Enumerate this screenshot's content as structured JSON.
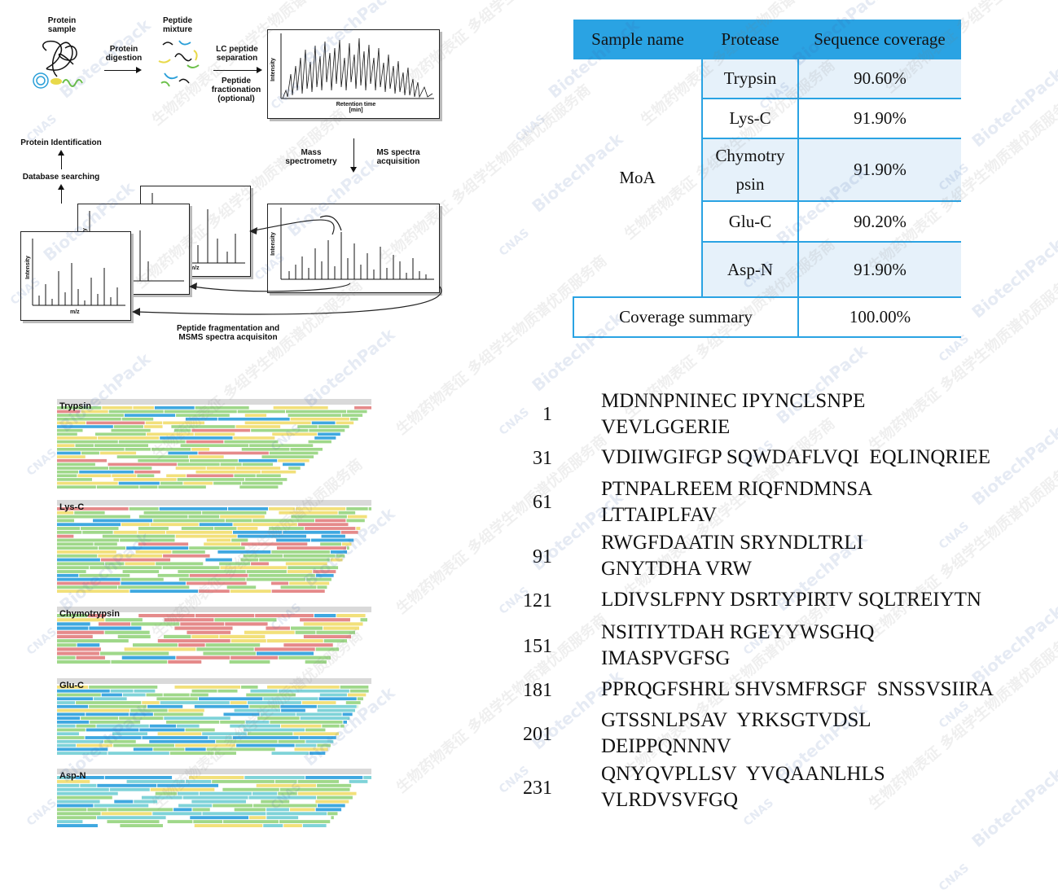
{
  "workflow": {
    "protein_sample": "Protein sample",
    "protein_digestion": "Protein digestion",
    "peptide_mixture": "Peptide mixture",
    "lc_separation": "LC peptide separation",
    "fractionation": "Peptide fractionation (optional)",
    "intensity": "Intensity",
    "retention_time": "Retention time [min]",
    "mass_spectrometry": "Mass spectrometry",
    "ms_spectra": "MS spectra acquisition",
    "protein_identification": "Protein Identification",
    "database_searching": "Database searching",
    "mz": "m/z",
    "fragmentation": "Peptide fragmentation and MSMS spectra acquisiton"
  },
  "coverage_table": {
    "headers": [
      "Sample name",
      "Protease",
      "Sequence coverage"
    ],
    "sample_name": "MoA",
    "rows": [
      {
        "protease": "Trypsin",
        "coverage": "90.60%"
      },
      {
        "protease": "Lys-C",
        "coverage": "91.90%"
      },
      {
        "protease": "Chymotry psin",
        "coverage": "91.90%"
      },
      {
        "protease": "Glu-C",
        "coverage": "90.20%"
      },
      {
        "protease": "Asp-N",
        "coverage": "91.90%"
      }
    ],
    "summary_label": "Coverage summary",
    "summary_value": "100.00%"
  },
  "coverage_maps": [
    {
      "label": "Trypsin"
    },
    {
      "label": "Lys-C"
    },
    {
      "label": "Chymotrypsin"
    },
    {
      "label": "Glu-C"
    },
    {
      "label": "Asp-N"
    }
  ],
  "sequence": [
    {
      "num": "1",
      "lines": [
        "MDNNPNINEC IPYNCLSNPE",
        "VEVLGGERIE"
      ]
    },
    {
      "num": "31",
      "lines": [
        "VDIIWGIFGP SQWDAFLVQI  EQLINQRIEE"
      ]
    },
    {
      "num": "61",
      "lines": [
        "PTNPALREEM RIQFNDMNSA",
        "LTTAIPLFAV"
      ]
    },
    {
      "num": "91",
      "lines": [
        "RWGFDAATIN SRYNDLTRLI",
        "GNYTDHA VRW"
      ]
    },
    {
      "num": "121",
      "lines": [
        "LDIVSLFPNY DSRTYPIRTV SQLTREIYTN"
      ]
    },
    {
      "num": "151",
      "lines": [
        "NSITIYTDAH RGEYYWSGHQ",
        "IMASPVGFSG"
      ]
    },
    {
      "num": "181",
      "lines": [
        "PPRQGFSHRL SHVSMFRSGF  SNSSVSIIRA"
      ]
    },
    {
      "num": "201",
      "lines": [
        "GTSSNLPSAV  YRKSGTVDSL",
        "DEIPPQNNNV"
      ]
    },
    {
      "num": "231",
      "lines": [
        "QNYQVPLLSV  YVQAANLHLS",
        "VLRDVSVFGQ"
      ]
    }
  ],
  "watermark": {
    "brand": "BiotechPack",
    "cn_line1": "生物药物表征",
    "cn_line2": "多组学生物质谱优质服务商",
    "cert": "CNAS"
  },
  "colors": {
    "table_header": "#2aa3e3",
    "table_tint": "#e6f1fa",
    "cov_green": "#9fd88a",
    "cov_yellow": "#f2e07a",
    "cov_blue": "#3fa8e0",
    "cov_red": "#e58a8a",
    "cov_cyan": "#7fd3d8"
  }
}
